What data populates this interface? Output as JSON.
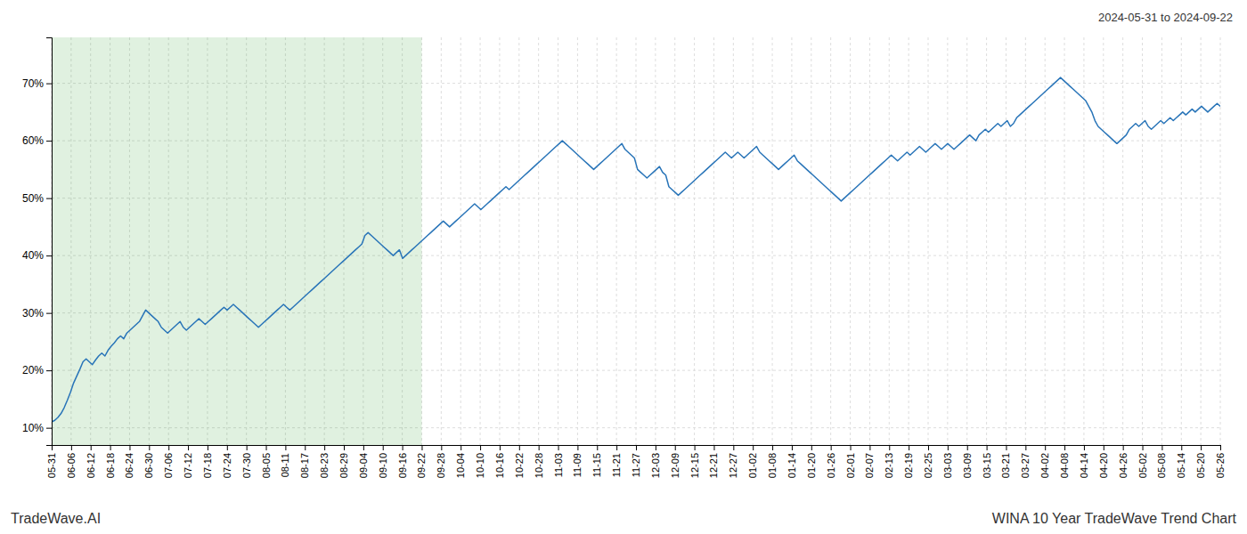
{
  "chart_data": {
    "type": "line",
    "title": "WINA 10 Year TradeWave Trend Chart",
    "subtitle": "2024-05-31 to 2024-09-22",
    "annotations": [
      "TradeWave.AI"
    ],
    "x": [
      0,
      1,
      2,
      3,
      4,
      5,
      6,
      7,
      8,
      9,
      10,
      11,
      12,
      13,
      14,
      15,
      16,
      17,
      18,
      19,
      20,
      21,
      22,
      23,
      24,
      25,
      26,
      27,
      28,
      29,
      30,
      31,
      32,
      33,
      34,
      35,
      36,
      37,
      38,
      39,
      40,
      41,
      42,
      43,
      44,
      45,
      46,
      47,
      48,
      49,
      50,
      51,
      52,
      53,
      54,
      55,
      56,
      57,
      58,
      59,
      60,
      61,
      62,
      63,
      64,
      65,
      66,
      67,
      68,
      69,
      70,
      71,
      72,
      73,
      74,
      75,
      76,
      77,
      78,
      79,
      80,
      81,
      82,
      83,
      84,
      85,
      86,
      87,
      88,
      89,
      90,
      91,
      92,
      93,
      94,
      95,
      96,
      97,
      98,
      99,
      100,
      101,
      102,
      103,
      104,
      105,
      106,
      107,
      108,
      109,
      110,
      111,
      112,
      113,
      114,
      115,
      116,
      117,
      118,
      119,
      120,
      121,
      122,
      123,
      124,
      125,
      126,
      127,
      128,
      129,
      130,
      131,
      132,
      133,
      134,
      135,
      136,
      137,
      138,
      139,
      140,
      141,
      142,
      143,
      144,
      145,
      146,
      147,
      148,
      149,
      150,
      151,
      152,
      153,
      154,
      155,
      156,
      157,
      158,
      159,
      160,
      161,
      162,
      163,
      164,
      165,
      166,
      167,
      168,
      169,
      170,
      171,
      172,
      173,
      174,
      175,
      176,
      177,
      178,
      179,
      180,
      181,
      182,
      183,
      184,
      185,
      186,
      187,
      188,
      189,
      190,
      191,
      192,
      193,
      194,
      195,
      196,
      197,
      198,
      199,
      200,
      201,
      202,
      203,
      204,
      205,
      206,
      207,
      208,
      209,
      210,
      211,
      212,
      213,
      214,
      215,
      216,
      217,
      218,
      219,
      220,
      221,
      222,
      223,
      224,
      225,
      226,
      227,
      228,
      229,
      230,
      231,
      232,
      233,
      234,
      235,
      236,
      237,
      238,
      239,
      240,
      241,
      242,
      243,
      244,
      245,
      246,
      247,
      248,
      249,
      250,
      251,
      252,
      253,
      254,
      255,
      256,
      257,
      258,
      259,
      260,
      261,
      262,
      263,
      264,
      265,
      266,
      267,
      268,
      269,
      270,
      271,
      272,
      273,
      274,
      275,
      276,
      277,
      278,
      279,
      280,
      281,
      282,
      283,
      284,
      285,
      286,
      287,
      288,
      289,
      290,
      291,
      292,
      293,
      294,
      295,
      296,
      297,
      298,
      299,
      300,
      301,
      302,
      303,
      304,
      305,
      306,
      307,
      308,
      309,
      310,
      311,
      312,
      313,
      314,
      315,
      316,
      317,
      318,
      319,
      320,
      321,
      322,
      323,
      324,
      325,
      326,
      327,
      328,
      329,
      330,
      331,
      332,
      333,
      334,
      335,
      336,
      337,
      338,
      339,
      340,
      341,
      342,
      343,
      344,
      345,
      346,
      347,
      348,
      349,
      350,
      351,
      352,
      353,
      354,
      355,
      356,
      357,
      358,
      359,
      360,
      361,
      362,
      363,
      364,
      365,
      366,
      367,
      368,
      369,
      370,
      371,
      372,
      373
    ],
    "values": [
      11.0,
      11.3,
      11.8,
      12.5,
      13.5,
      14.8,
      16.2,
      17.8,
      19.0,
      20.2,
      21.5,
      22.0,
      21.5,
      21.0,
      21.8,
      22.5,
      23.0,
      22.5,
      23.5,
      24.2,
      24.8,
      25.5,
      26.0,
      25.5,
      26.5,
      27.0,
      27.5,
      28.0,
      28.5,
      29.5,
      30.5,
      30.0,
      29.5,
      29.0,
      28.5,
      27.5,
      27.0,
      26.5,
      27.0,
      27.5,
      28.0,
      28.5,
      27.5,
      27.0,
      27.5,
      28.0,
      28.5,
      29.0,
      28.5,
      28.0,
      28.5,
      29.0,
      29.5,
      30.0,
      30.5,
      31.0,
      30.5,
      31.0,
      31.5,
      31.0,
      30.5,
      30.0,
      29.5,
      29.0,
      28.5,
      28.0,
      27.5,
      28.0,
      28.5,
      29.0,
      29.5,
      30.0,
      30.5,
      31.0,
      31.5,
      31.0,
      30.5,
      31.0,
      31.5,
      32.0,
      32.5,
      33.0,
      33.5,
      34.0,
      34.5,
      35.0,
      35.5,
      36.0,
      36.5,
      37.0,
      37.5,
      38.0,
      38.5,
      39.0,
      39.5,
      40.0,
      40.5,
      41.0,
      41.5,
      42.0,
      43.5,
      44.0,
      43.5,
      43.0,
      42.5,
      42.0,
      41.5,
      41.0,
      40.5,
      40.0,
      40.5,
      41.0,
      39.5,
      40.0,
      40.5,
      41.0,
      41.5,
      42.0,
      42.5,
      43.0,
      43.5,
      44.0,
      44.5,
      45.0,
      45.5,
      46.0,
      45.5,
      45.0,
      45.5,
      46.0,
      46.5,
      47.0,
      47.5,
      48.0,
      48.5,
      49.0,
      48.5,
      48.0,
      48.5,
      49.0,
      49.5,
      50.0,
      50.5,
      51.0,
      51.5,
      52.0,
      51.5,
      52.0,
      52.5,
      53.0,
      53.5,
      54.0,
      54.5,
      55.0,
      55.5,
      56.0,
      56.5,
      57.0,
      57.5,
      58.0,
      58.5,
      59.0,
      59.5,
      60.0,
      59.5,
      59.0,
      58.5,
      58.0,
      57.5,
      57.0,
      56.5,
      56.0,
      55.5,
      55.0,
      55.5,
      56.0,
      56.5,
      57.0,
      57.5,
      58.0,
      58.5,
      59.0,
      59.5,
      58.5,
      58.0,
      57.5,
      57.0,
      55.0,
      54.5,
      54.0,
      53.5,
      54.0,
      54.5,
      55.0,
      55.5,
      54.5,
      54.0,
      52.0,
      51.5,
      51.0,
      50.5,
      51.0,
      51.5,
      52.0,
      52.5,
      53.0,
      53.5,
      54.0,
      54.5,
      55.0,
      55.5,
      56.0,
      56.5,
      57.0,
      57.5,
      58.0,
      57.5,
      57.0,
      57.5,
      58.0,
      57.5,
      57.0,
      57.5,
      58.0,
      58.5,
      59.0,
      58.0,
      57.5,
      57.0,
      56.5,
      56.0,
      55.5,
      55.0,
      55.5,
      56.0,
      56.5,
      57.0,
      57.5,
      56.5,
      56.0,
      55.5,
      55.0,
      54.5,
      54.0,
      53.5,
      53.0,
      52.5,
      52.0,
      51.5,
      51.0,
      50.5,
      50.0,
      49.5,
      50.0,
      50.5,
      51.0,
      51.5,
      52.0,
      52.5,
      53.0,
      53.5,
      54.0,
      54.5,
      55.0,
      55.5,
      56.0,
      56.5,
      57.0,
      57.5,
      57.0,
      56.5,
      57.0,
      57.5,
      58.0,
      57.5,
      58.0,
      58.5,
      59.0,
      58.5,
      58.0,
      58.5,
      59.0,
      59.5,
      59.0,
      58.5,
      59.0,
      59.5,
      59.0,
      58.5,
      59.0,
      59.5,
      60.0,
      60.5,
      61.0,
      60.5,
      60.0,
      61.0,
      61.5,
      62.0,
      61.5,
      62.0,
      62.5,
      63.0,
      62.5,
      63.0,
      63.5,
      62.5,
      63.0,
      64.0,
      64.5,
      65.0,
      65.5,
      66.0,
      66.5,
      67.0,
      67.5,
      68.0,
      68.5,
      69.0,
      69.5,
      70.0,
      70.5,
      71.0,
      70.5,
      70.0,
      69.5,
      69.0,
      68.5,
      68.0,
      67.5,
      67.0,
      66.0,
      65.0,
      63.5,
      62.5,
      62.0,
      61.5,
      61.0,
      60.5,
      60.0,
      59.5,
      60.0,
      60.5,
      61.0,
      62.0,
      62.5,
      63.0,
      62.5,
      63.0,
      63.5,
      62.5,
      62.0,
      62.5,
      63.0,
      63.5,
      63.0,
      63.5,
      64.0,
      63.5,
      64.0,
      64.5,
      65.0,
      64.5,
      65.0,
      65.5,
      65.0,
      65.5,
      66.0,
      65.5,
      65.0,
      65.5,
      66.0,
      66.5,
      66.0
    ],
    "color": "#2874b8",
    "xlim": [
      0,
      373
    ],
    "xticks": [
      {
        "value": 0,
        "label": "05-31"
      },
      {
        "value": 6.2166667,
        "label": "06-06"
      },
      {
        "value": 12.4333333,
        "label": "06-12"
      },
      {
        "value": 18.65,
        "label": "06-18"
      },
      {
        "value": 24.8666667,
        "label": "06-24"
      },
      {
        "value": 31.0833333,
        "label": "06-30"
      },
      {
        "value": 37.3,
        "label": "07-06"
      },
      {
        "value": 43.5166667,
        "label": "07-12"
      },
      {
        "value": 49.7333333,
        "label": "07-18"
      },
      {
        "value": 55.95,
        "label": "07-24"
      },
      {
        "value": 62.1666667,
        "label": "07-30"
      },
      {
        "value": 68.3833333,
        "label": "08-05"
      },
      {
        "value": 74.6,
        "label": "08-11"
      },
      {
        "value": 80.8166667,
        "label": "08-17"
      },
      {
        "value": 87.0333333,
        "label": "08-23"
      },
      {
        "value": 93.25,
        "label": "08-29"
      },
      {
        "value": 99.4666667,
        "label": "09-04"
      },
      {
        "value": 105.6833333,
        "label": "09-10"
      },
      {
        "value": 111.9,
        "label": "09-16"
      },
      {
        "value": 118.1166667,
        "label": "09-22"
      },
      {
        "value": 124.3333333,
        "label": "09-28"
      },
      {
        "value": 130.55,
        "label": "10-04"
      },
      {
        "value": 136.7666667,
        "label": "10-10"
      },
      {
        "value": 142.9833333,
        "label": "10-16"
      },
      {
        "value": 149.2,
        "label": "10-22"
      },
      {
        "value": 155.4166667,
        "label": "10-28"
      },
      {
        "value": 161.6333333,
        "label": "11-03"
      },
      {
        "value": 167.85,
        "label": "11-09"
      },
      {
        "value": 174.0666667,
        "label": "11-15"
      },
      {
        "value": 180.2833333,
        "label": "11-21"
      },
      {
        "value": 186.5,
        "label": "11-27"
      },
      {
        "value": 192.7166667,
        "label": "12-03"
      },
      {
        "value": 198.9333333,
        "label": "12-09"
      },
      {
        "value": 205.15,
        "label": "12-15"
      },
      {
        "value": 211.3666667,
        "label": "12-21"
      },
      {
        "value": 217.5833333,
        "label": "12-27"
      },
      {
        "value": 223.8,
        "label": "01-02"
      },
      {
        "value": 230.0166667,
        "label": "01-08"
      },
      {
        "value": 236.2333333,
        "label": "01-14"
      },
      {
        "value": 242.45,
        "label": "01-20"
      },
      {
        "value": 248.6666667,
        "label": "01-26"
      },
      {
        "value": 254.8833333,
        "label": "02-01"
      },
      {
        "value": 261.1,
        "label": "02-07"
      },
      {
        "value": 267.3166667,
        "label": "02-13"
      },
      {
        "value": 273.5333333,
        "label": "02-19"
      },
      {
        "value": 279.75,
        "label": "02-25"
      },
      {
        "value": 285.9666667,
        "label": "03-03"
      },
      {
        "value": 292.1833333,
        "label": "03-09"
      },
      {
        "value": 298.4,
        "label": "03-15"
      },
      {
        "value": 304.6166667,
        "label": "03-21"
      },
      {
        "value": 310.8333333,
        "label": "03-27"
      },
      {
        "value": 317.05,
        "label": "04-02"
      },
      {
        "value": 323.2666667,
        "label": "04-08"
      },
      {
        "value": 329.4833333,
        "label": "04-14"
      },
      {
        "value": 335.7,
        "label": "04-20"
      },
      {
        "value": 341.9166667,
        "label": "04-26"
      },
      {
        "value": 348.1333333,
        "label": "05-02"
      },
      {
        "value": 354.35,
        "label": "05-08"
      },
      {
        "value": 360.5666667,
        "label": "05-14"
      },
      {
        "value": 366.7833333,
        "label": "05-20"
      },
      {
        "value": 373,
        "label": "05-26"
      }
    ],
    "ylim": [
      7,
      78
    ],
    "yticks": [
      {
        "value": 10,
        "label": "10%"
      },
      {
        "value": 20,
        "label": "20%"
      },
      {
        "value": 30,
        "label": "30%"
      },
      {
        "value": 40,
        "label": "40%"
      },
      {
        "value": 50,
        "label": "50%"
      },
      {
        "value": 60,
        "label": "60%"
      },
      {
        "value": 70,
        "label": "70%"
      }
    ],
    "grid": true,
    "shaded_region": [
      0,
      118.1166667
    ]
  }
}
